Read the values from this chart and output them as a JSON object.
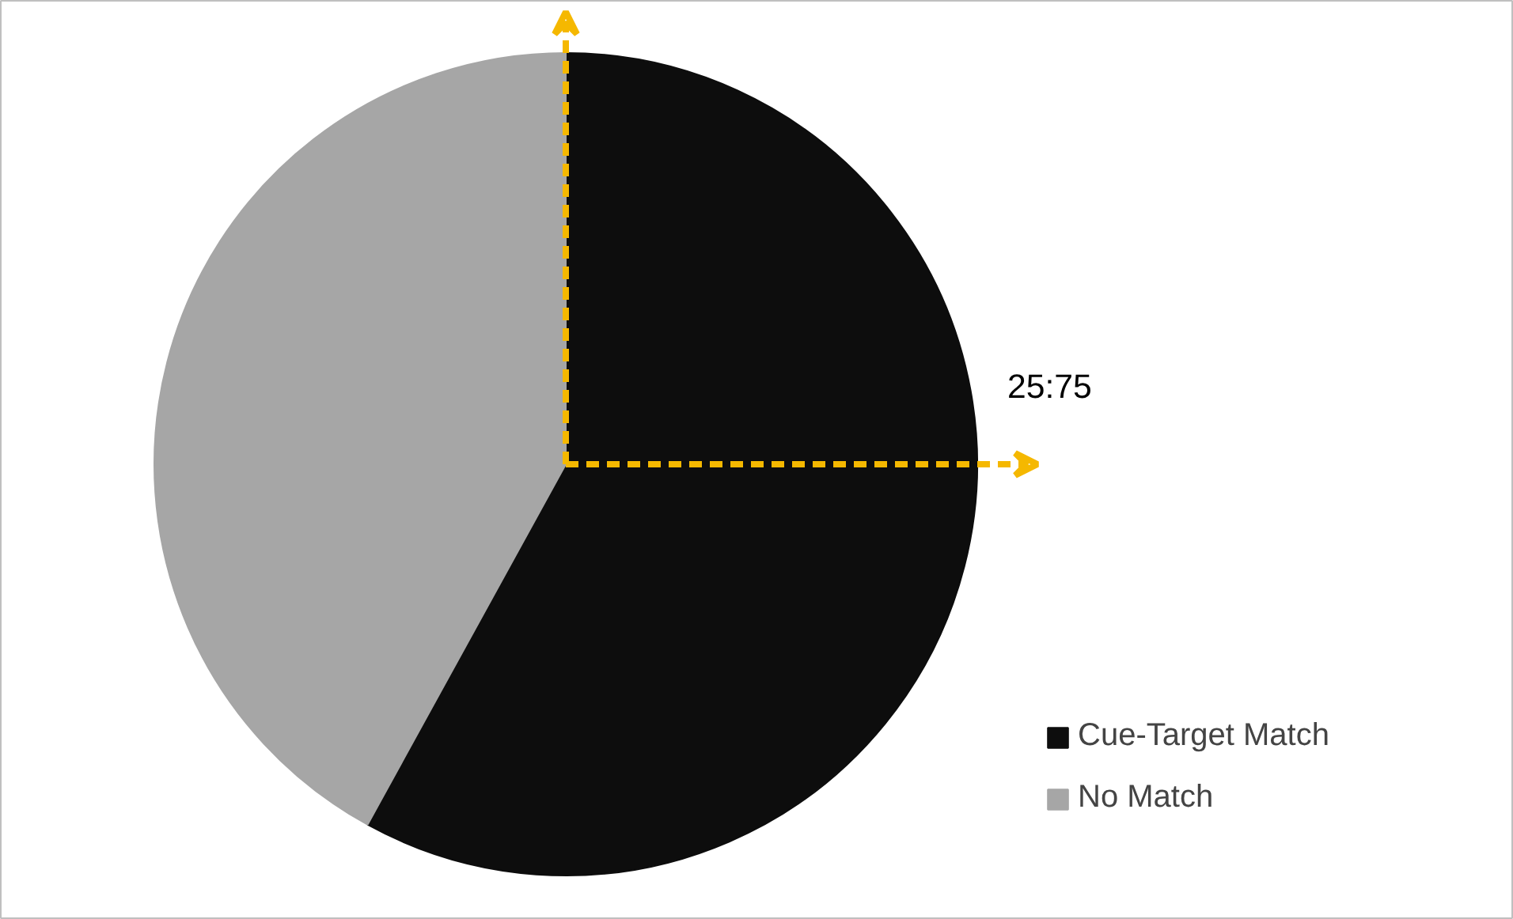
{
  "chart_data": {
    "type": "pie",
    "categories": [
      "Cue-Target Match",
      "No Match"
    ],
    "values": [
      58,
      42
    ],
    "colors": [
      "#0d0d0d",
      "#a6a6a6"
    ],
    "legend": "right",
    "annotations": [
      "25:75"
    ]
  }
}
